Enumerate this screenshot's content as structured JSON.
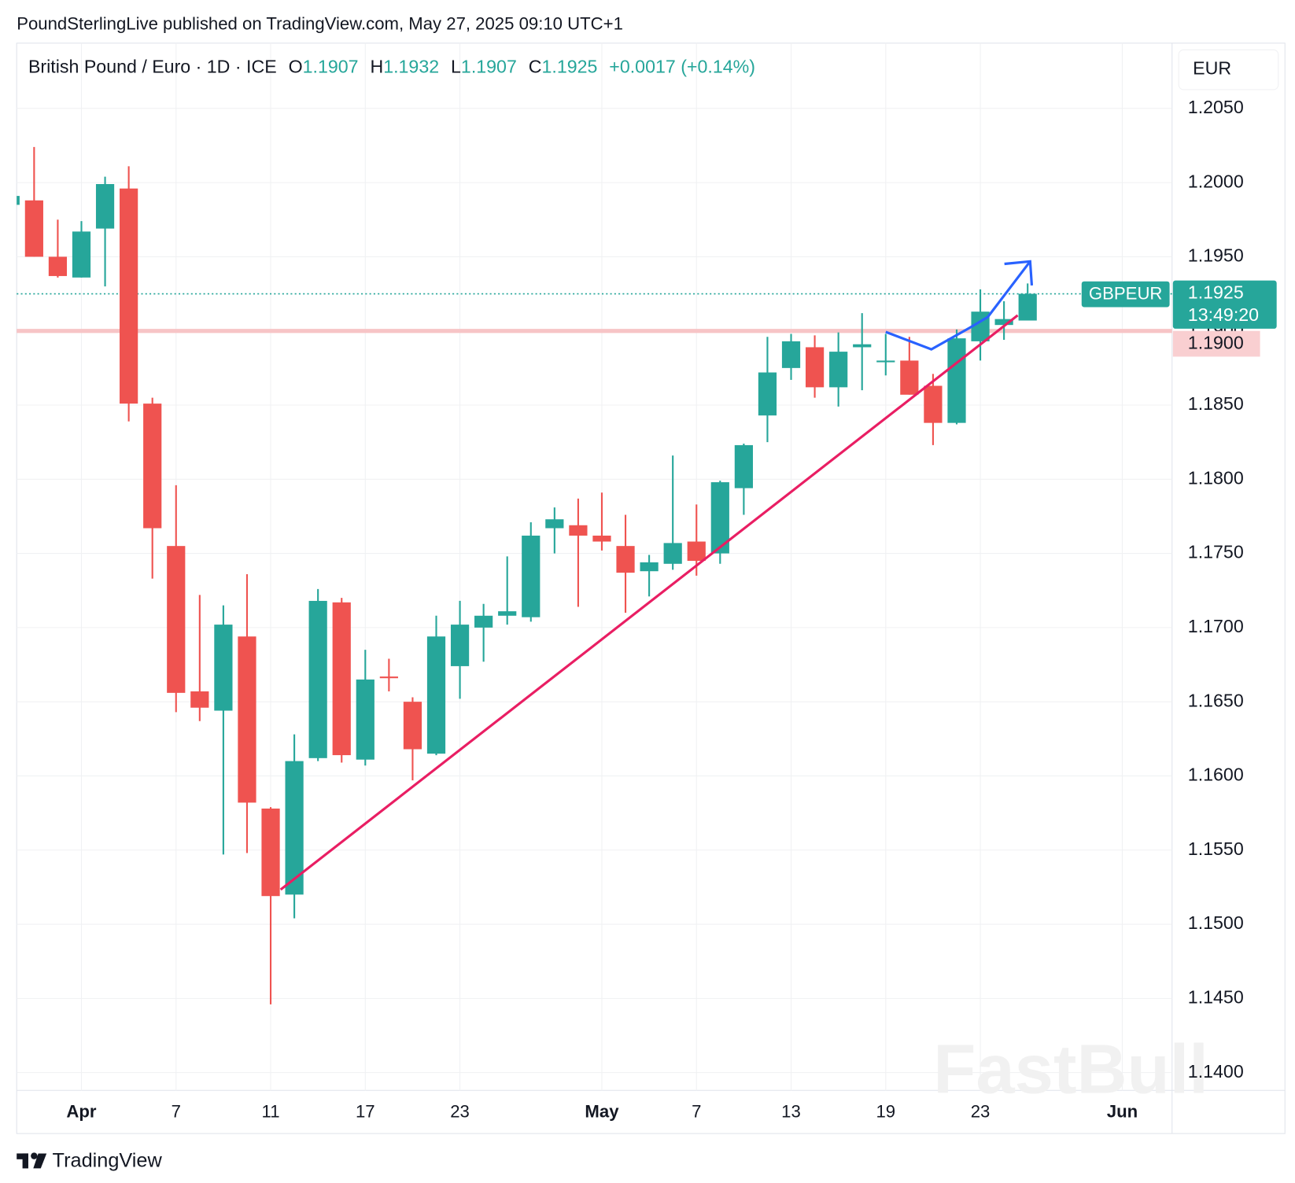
{
  "publisher_line": "PoundSterlingLive published on TradingView.com, May 27, 2025 09:10 UTC+1",
  "footer_brand": "TradingView",
  "watermark": "FastBull",
  "currency_button": "EUR",
  "chart_data": {
    "type": "candlestick",
    "title": "British Pound / Euro · 1D · ICE",
    "ohlc_letters": [
      "O",
      "H",
      "L",
      "C"
    ],
    "change_label": "+0.0017 (+0.14%)",
    "symbol": "GBPEUR",
    "countdown": "13:49:20",
    "up_color": "#26a69a",
    "down_color": "#ef5350",
    "categories": [
      null,
      null,
      null,
      "Apr",
      null,
      null,
      null,
      "7",
      null,
      null,
      null,
      "11",
      null,
      null,
      null,
      "17",
      null,
      null,
      null,
      "23",
      null,
      null,
      null,
      null,
      null,
      "May",
      null,
      null,
      null,
      "7",
      null,
      null,
      null,
      "13",
      null,
      null,
      null,
      "19",
      null,
      null,
      null,
      "23",
      null,
      null,
      null,
      null,
      null,
      "Jun"
    ],
    "open": [
      1.1985,
      1.1988,
      1.195,
      1.1936,
      1.1969,
      1.1996,
      1.1851,
      1.1755,
      1.1657,
      1.1644,
      1.1694,
      1.1578,
      1.152,
      1.1612,
      1.1717,
      1.1611,
      1.1667,
      1.165,
      1.1615,
      1.1674,
      1.17,
      1.1708,
      1.1707,
      1.1767,
      1.1769,
      1.1762,
      1.1755,
      1.1738,
      1.1743,
      1.1758,
      1.175,
      1.1794,
      1.1843,
      1.1875,
      1.1889,
      1.1862,
      1.1889,
      1.1879,
      1.188,
      1.1863,
      1.1838,
      1.1893,
      1.1904,
      1.1907,
      null,
      null,
      null,
      null
    ],
    "high": [
      1.1992,
      1.2024,
      1.1975,
      1.1974,
      1.2004,
      1.2011,
      1.1855,
      1.1796,
      1.1722,
      1.1715,
      1.1736,
      1.1579,
      1.1628,
      1.1726,
      1.172,
      1.1685,
      1.1679,
      1.1653,
      1.1708,
      1.1718,
      1.1716,
      1.1748,
      1.1771,
      1.1781,
      1.1787,
      1.1791,
      1.1776,
      1.1749,
      1.1816,
      1.1783,
      1.1799,
      1.1824,
      1.1896,
      1.1898,
      1.1897,
      1.1899,
      1.1912,
      1.1898,
      1.1896,
      1.1871,
      1.1901,
      1.1928,
      1.192,
      1.1932,
      null,
      null,
      null,
      null
    ],
    "low": [
      1.1984,
      1.195,
      1.1936,
      1.1936,
      1.193,
      1.1839,
      1.1733,
      1.1643,
      1.1637,
      1.1547,
      1.1548,
      1.1446,
      1.1504,
      1.161,
      1.1609,
      1.1607,
      1.1657,
      1.1597,
      1.1614,
      1.1652,
      1.1677,
      1.1702,
      1.1704,
      1.175,
      1.1714,
      1.1752,
      1.171,
      1.1721,
      1.1739,
      1.1735,
      1.1743,
      1.1776,
      1.1825,
      1.1867,
      1.1855,
      1.1849,
      1.186,
      1.187,
      1.1857,
      1.1823,
      1.1837,
      1.188,
      1.1894,
      1.1907,
      null,
      null,
      null,
      null
    ],
    "close": [
      1.1991,
      1.195,
      1.1937,
      1.1967,
      1.1999,
      1.1851,
      1.1767,
      1.1656,
      1.1646,
      1.1702,
      1.1582,
      1.1519,
      1.161,
      1.1718,
      1.1614,
      1.1665,
      1.1666,
      1.1618,
      1.1694,
      1.1702,
      1.1708,
      1.1711,
      1.1762,
      1.1773,
      1.1762,
      1.1758,
      1.1737,
      1.1744,
      1.1757,
      1.1745,
      1.1798,
      1.1823,
      1.1872,
      1.1893,
      1.1862,
      1.1886,
      1.1891,
      1.188,
      1.1857,
      1.1838,
      1.1895,
      1.1913,
      1.1908,
      1.1925,
      null,
      null,
      null,
      null
    ],
    "last_price": 1.1925,
    "horizontal_line": {
      "value": 1.19,
      "label": "1.1900"
    },
    "ylim": [
      1.1388,
      1.2094
    ],
    "yticks": [
      {
        "value": 1.14,
        "label": "1.1400"
      },
      {
        "value": 1.145,
        "label": "1.1450"
      },
      {
        "value": 1.15,
        "label": "1.1500"
      },
      {
        "value": 1.155,
        "label": "1.1550"
      },
      {
        "value": 1.16,
        "label": "1.1600"
      },
      {
        "value": 1.165,
        "label": "1.1650"
      },
      {
        "value": 1.17,
        "label": "1.1700"
      },
      {
        "value": 1.175,
        "label": "1.1750"
      },
      {
        "value": 1.18,
        "label": "1.1800"
      },
      {
        "value": 1.185,
        "label": "1.1850"
      },
      {
        "value": 1.19,
        "label": "1.1900"
      },
      {
        "value": 1.195,
        "label": "1.1950"
      },
      {
        "value": 1.2,
        "label": "1.2000"
      },
      {
        "value": 1.205,
        "label": "1.2050"
      }
    ],
    "grid": true
  }
}
